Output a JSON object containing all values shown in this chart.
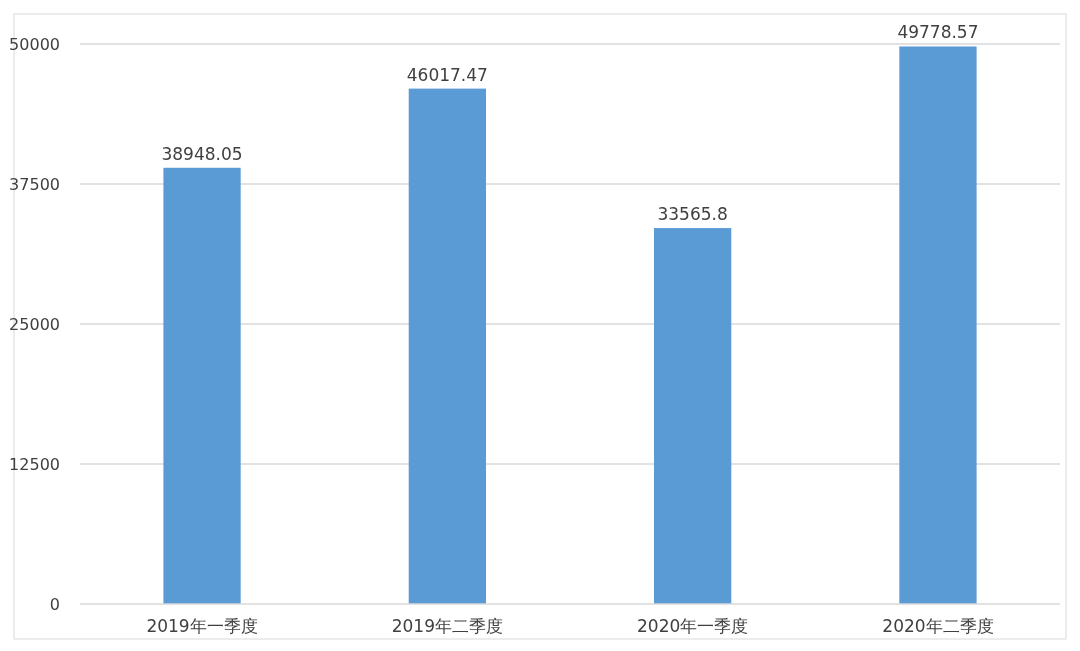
{
  "chart_data": {
    "type": "bar",
    "categories": [
      "2019年一季度",
      "2019年二季度",
      "2020年一季度",
      "2020年二季度"
    ],
    "values": [
      38948.05,
      46017.47,
      33565.8,
      49778.57
    ],
    "color": "#5b9bd5",
    "ylim": [
      0,
      50000
    ],
    "yticks": [
      0,
      12500,
      25000,
      37500,
      50000
    ],
    "grid": "y",
    "data_labels": true
  }
}
